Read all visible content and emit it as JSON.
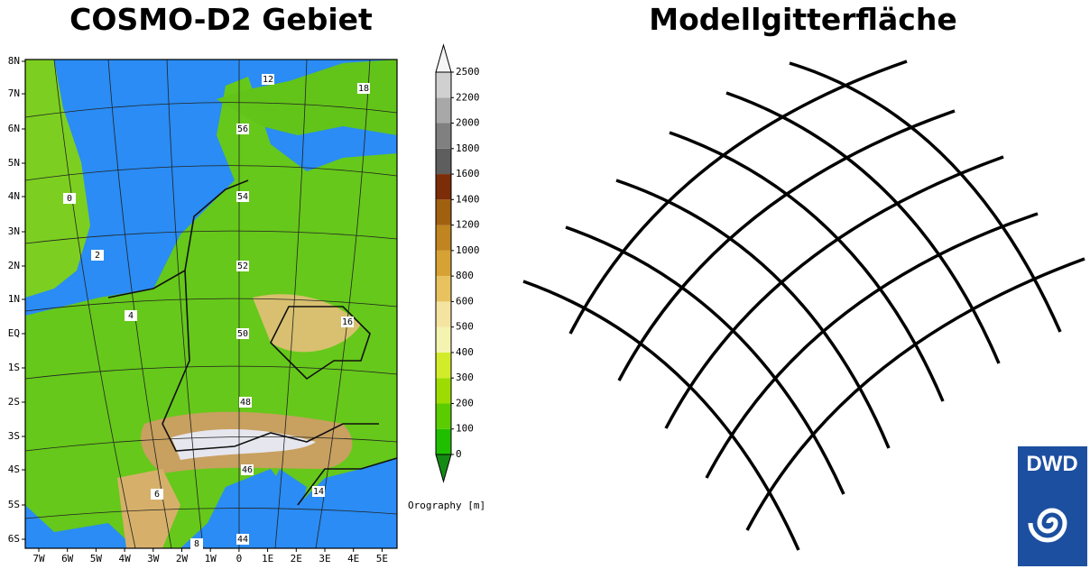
{
  "left_title": "COSMO-D2 Gebiet",
  "right_title": "Modellgitterfläche",
  "map": {
    "y_labels": [
      "8N",
      "7N",
      "6N",
      "5N",
      "4N",
      "3N",
      "2N",
      "1N",
      "EQ",
      "1S",
      "2S",
      "3S",
      "4S",
      "5S",
      "6S"
    ],
    "x_labels": [
      "7W",
      "6W",
      "5W",
      "4W",
      "3W",
      "2W",
      "1W",
      "0",
      "1E",
      "2E",
      "3E",
      "4E",
      "5E"
    ],
    "grid_labels": [
      "12",
      "18",
      "56",
      "54",
      "52",
      "50",
      "48",
      "46",
      "44",
      "0",
      "2",
      "4",
      "6",
      "8",
      "14",
      "16"
    ]
  },
  "colorbar": {
    "label": "Orography [m]",
    "ticks": [
      0,
      100,
      200,
      300,
      400,
      500,
      600,
      800,
      1000,
      1200,
      1400,
      1600,
      1800,
      2000,
      2200,
      2500
    ],
    "colors": [
      "#1fbf00",
      "#5acc00",
      "#9ddc00",
      "#d2ec2a",
      "#f4f4b0",
      "#f4e4a0",
      "#e8c25e",
      "#d6a234",
      "#c08420",
      "#a06010",
      "#7c2c06",
      "#5e5e5e",
      "#808080",
      "#a8a8a8",
      "#d0d0d0"
    ],
    "below_color": "#158a15",
    "above_color": "#f6f6f6"
  },
  "logo": "DWD"
}
